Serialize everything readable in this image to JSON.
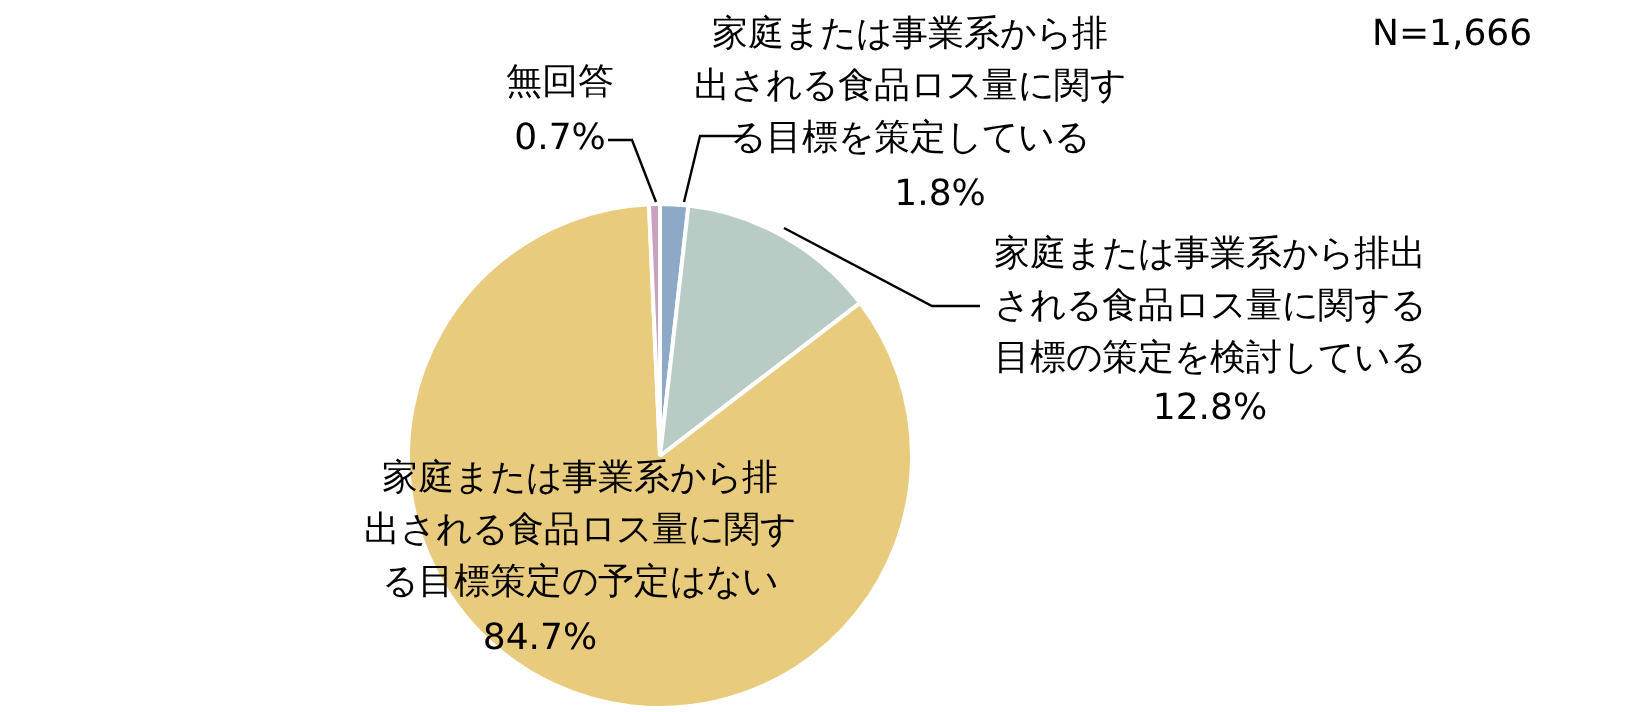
{
  "chart_data": {
    "type": "pie",
    "categories": [
      "家庭または事業系から排出される食品ロス量に関する目標を策定している",
      "家庭または事業系から排出される食品ロス量に関する目標の策定を検討している",
      "家庭または事業系から排出される食品ロス量に関する目標策定の予定はない",
      "無回答"
    ],
    "values": [
      1.8,
      12.8,
      84.7,
      0.7
    ],
    "colors": [
      "#8ea9c8",
      "#b8cbc4",
      "#e8cb7c",
      "#c9a0bf"
    ],
    "value_labels": [
      "1.8%",
      "12.8%",
      "84.7%",
      "0.7%"
    ],
    "annotations": [
      "N=1,666"
    ],
    "legend": false
  }
}
